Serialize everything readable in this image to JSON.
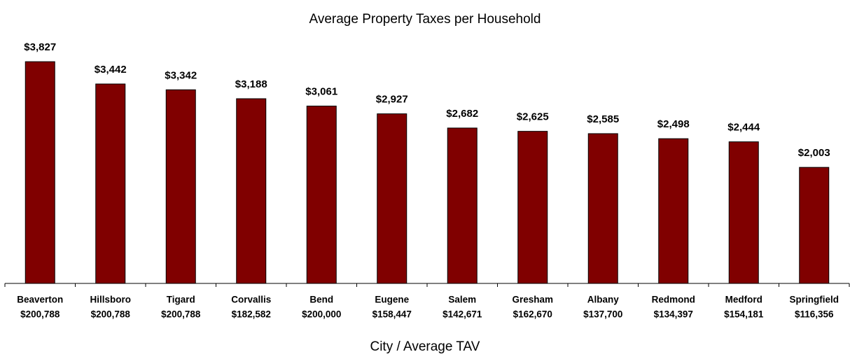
{
  "chart_data": {
    "type": "bar",
    "title": "Average Property Taxes per Household",
    "x_label": "City / Average TAV",
    "categories": [
      "Beaverton",
      "Hillsboro",
      "Tigard",
      "Corvallis",
      "Bend",
      "Eugene",
      "Salem",
      "Gresham",
      "Albany",
      "Redmond",
      "Medford",
      "Springfield"
    ],
    "category_sublabels": [
      "$200,788",
      "$200,788",
      "$200,788",
      "$182,582",
      "$200,000",
      "$158,447",
      "$142,671",
      "$162,670",
      "$137,700",
      "$134,397",
      "$154,181",
      "$116,356"
    ],
    "values": [
      3827,
      3442,
      3342,
      3188,
      3061,
      2927,
      2682,
      2625,
      2585,
      2498,
      2444,
      2003
    ],
    "value_labels": [
      "$3,827",
      "$3,442",
      "$3,342",
      "$3,188",
      "$3,061",
      "$2,927",
      "$2,682",
      "$2,625",
      "$2,585",
      "$2,498",
      "$2,444",
      "$2,003"
    ],
    "color": "#800000",
    "ylim": [
      0,
      4500
    ],
    "grid": false
  }
}
